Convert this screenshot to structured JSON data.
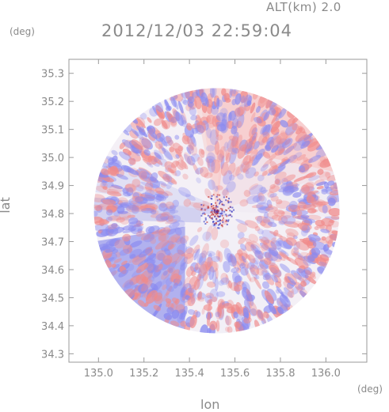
{
  "chart_data": {
    "type": "heatmap",
    "title": "2012/12/03 22:59:04",
    "header_label": "ALT(km) 2.0",
    "xlabel": "lon",
    "ylabel": "lat",
    "xunit": "(deg)",
    "yunit": "(deg)",
    "xlim": [
      134.87,
      136.18
    ],
    "ylim": [
      34.27,
      35.35
    ],
    "x_ticks": [
      "135.0",
      "135.2",
      "135.4",
      "135.6",
      "135.8",
      "136.0"
    ],
    "x_tick_values": [
      135.0,
      135.2,
      135.4,
      135.6,
      135.8,
      136.0
    ],
    "y_ticks": [
      "34.3",
      "34.4",
      "34.5",
      "34.6",
      "34.7",
      "34.8",
      "34.9",
      "35.0",
      "35.1",
      "35.2",
      "35.3"
    ],
    "y_tick_values": [
      34.3,
      34.4,
      34.5,
      34.6,
      34.7,
      34.8,
      34.9,
      35.0,
      35.1,
      35.2,
      35.3
    ],
    "radar_center": [
      135.52,
      34.81
    ],
    "radar_radius_deg": 0.54,
    "colors": {
      "positive": "#f08a8a",
      "negative": "#8a8af0",
      "neutral": "#f4f0f6",
      "axis": "#9a9a9a"
    }
  }
}
